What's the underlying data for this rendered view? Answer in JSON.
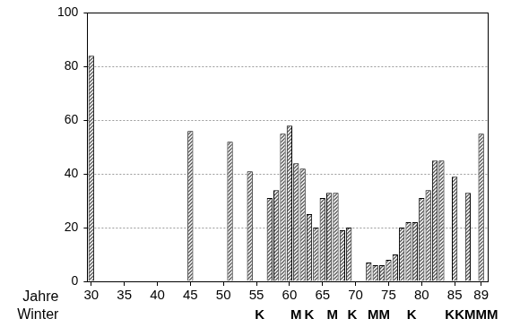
{
  "chart_data": {
    "type": "bar",
    "xlabel": [
      "Jahre",
      "Winter"
    ],
    "x": [
      30,
      45,
      51,
      54,
      57,
      58,
      59,
      60,
      61,
      62,
      63,
      64,
      65,
      66,
      67,
      68,
      69,
      72,
      73,
      74,
      75,
      76,
      77,
      78,
      79,
      80,
      81,
      82,
      83,
      85,
      87,
      89
    ],
    "values": [
      84,
      56,
      52,
      41,
      31,
      34,
      55,
      58,
      44,
      42,
      25,
      20,
      31,
      33,
      33,
      19,
      20,
      7,
      6,
      6,
      8,
      10,
      20,
      22,
      22,
      31,
      34,
      45,
      45,
      39,
      33,
      55
    ],
    "color": "#555555",
    "xlim": [
      29.4,
      90
    ],
    "xticks": [
      30,
      35,
      40,
      45,
      50,
      55,
      60,
      65,
      70,
      75,
      80,
      85,
      89
    ],
    "ylim": [
      0,
      100
    ],
    "yticks": [
      0,
      20,
      40,
      60,
      80,
      100
    ],
    "grid": true,
    "annotations": [
      {
        "x": 55.5,
        "text": "K"
      },
      {
        "x": 61,
        "text": "M"
      },
      {
        "x": 63,
        "text": "K"
      },
      {
        "x": 66.5,
        "text": "M"
      },
      {
        "x": 69.5,
        "text": "K"
      },
      {
        "x": 73.5,
        "text": "MM"
      },
      {
        "x": 78.5,
        "text": "K"
      },
      {
        "x": 85,
        "text": "KK"
      },
      {
        "x": 89,
        "text": "MMM"
      }
    ]
  }
}
